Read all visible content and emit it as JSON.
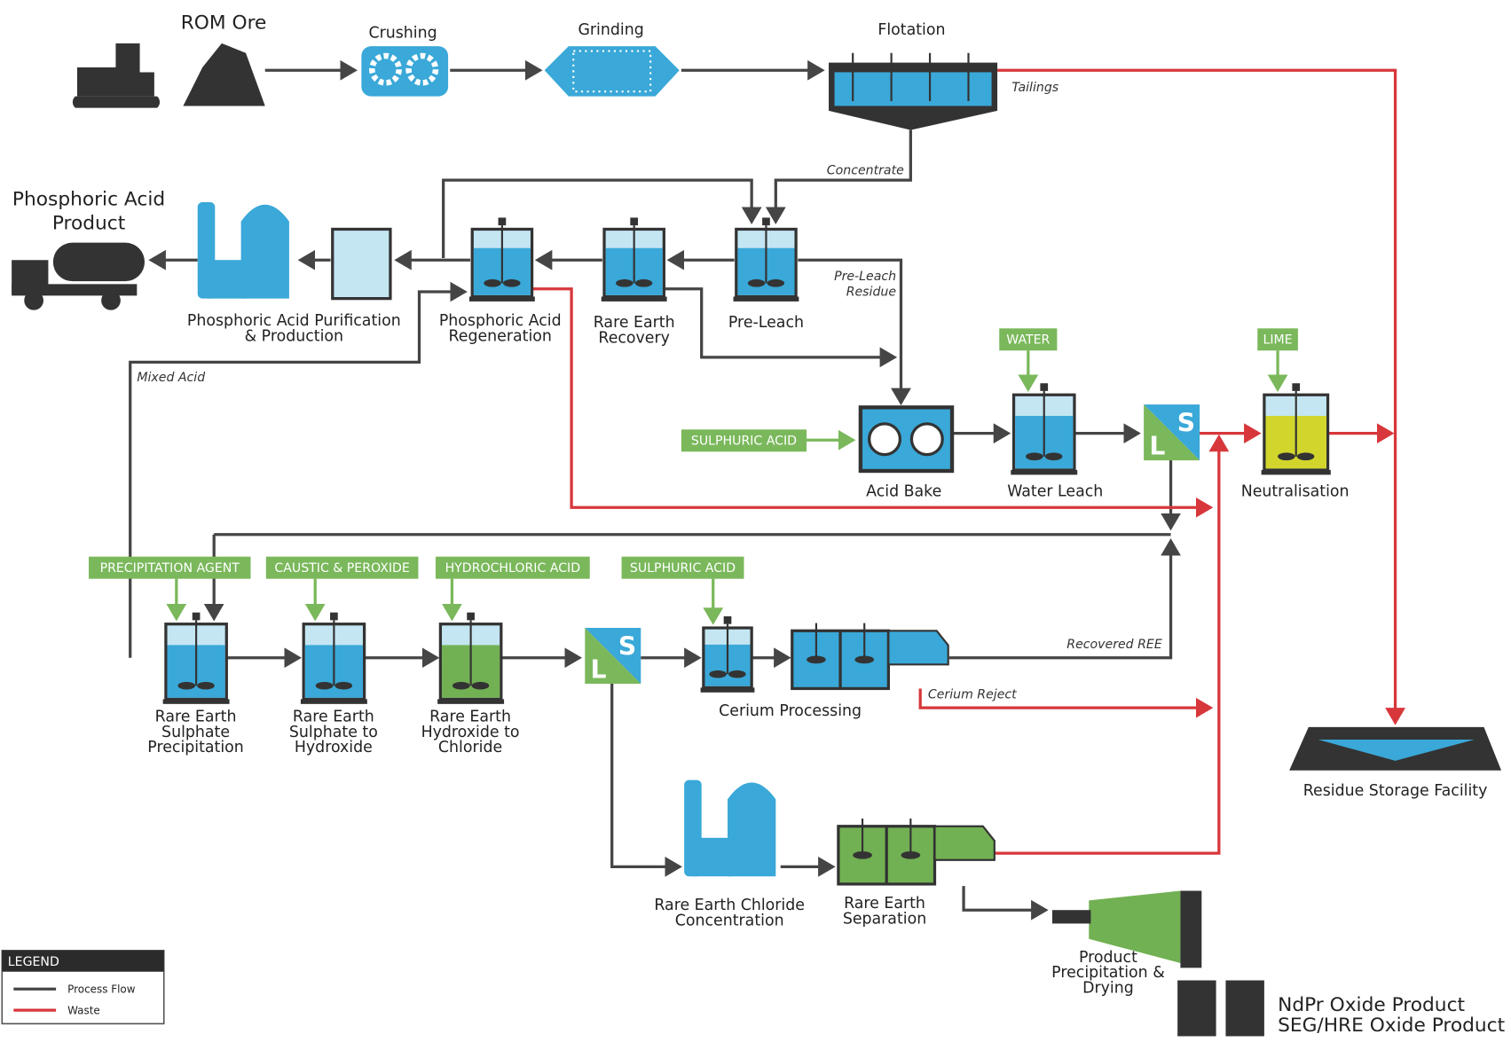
{
  "nodes": [
    {
      "label": [
        "ROM Ore"
      ]
    },
    {
      "label": [
        "Crushing"
      ]
    },
    {
      "label": [
        "Grinding"
      ]
    },
    {
      "label": [
        "Flotation"
      ]
    },
    {
      "label": [
        "Pre-Leach"
      ]
    },
    {
      "label": [
        "Rare Earth",
        "Recovery"
      ]
    },
    {
      "label": [
        "Phosphoric Acid",
        "Regeneration"
      ]
    },
    {
      "label": [
        "Phosphoric Acid Purification",
        "& Production"
      ]
    },
    {
      "label": [
        "Acid Bake"
      ]
    },
    {
      "label": [
        "Water Leach"
      ]
    },
    {
      "label": [
        "Neutralisation"
      ]
    },
    {
      "label": [
        "Residue Storage Facility"
      ]
    },
    {
      "label": [
        "Rare Earth",
        "Sulphate",
        "Precipitation"
      ]
    },
    {
      "label": [
        "Rare Earth",
        "Sulphate to",
        "Hydroxide"
      ]
    },
    {
      "label": [
        "Rare Earth",
        "Hydroxide to",
        "Chloride"
      ]
    },
    {
      "label": [
        "Cerium Processing"
      ]
    },
    {
      "label": [
        "Rare Earth Chloride",
        "Concentration"
      ]
    },
    {
      "label": [
        "Rare Earth",
        "Separation"
      ]
    },
    {
      "label": [
        "Product",
        "Precipitation &",
        "Drying"
      ]
    }
  ],
  "streams": [
    "Tailings",
    "Concentrate",
    [
      "Pre-Leach",
      "Residue"
    ],
    "Mixed Acid",
    "Recovered REE",
    "Cerium Reject"
  ],
  "reagents": [
    "SULPHURIC ACID",
    "WATER",
    "LIME",
    "PRECIPITATION AGENT",
    "CAUSTIC & PEROXIDE",
    "HYDROCHLORIC ACID",
    "SULPHURIC ACID"
  ],
  "separator": {
    "liquid": "L",
    "solid": "S"
  },
  "products": [
    [
      "Phosphoric Acid",
      "Product"
    ],
    "NdPr Oxide Product",
    "SEG/HRE Oxide Product"
  ],
  "legend": {
    "title": "LEGEND",
    "items": [
      "Process Flow",
      "Waste"
    ]
  }
}
